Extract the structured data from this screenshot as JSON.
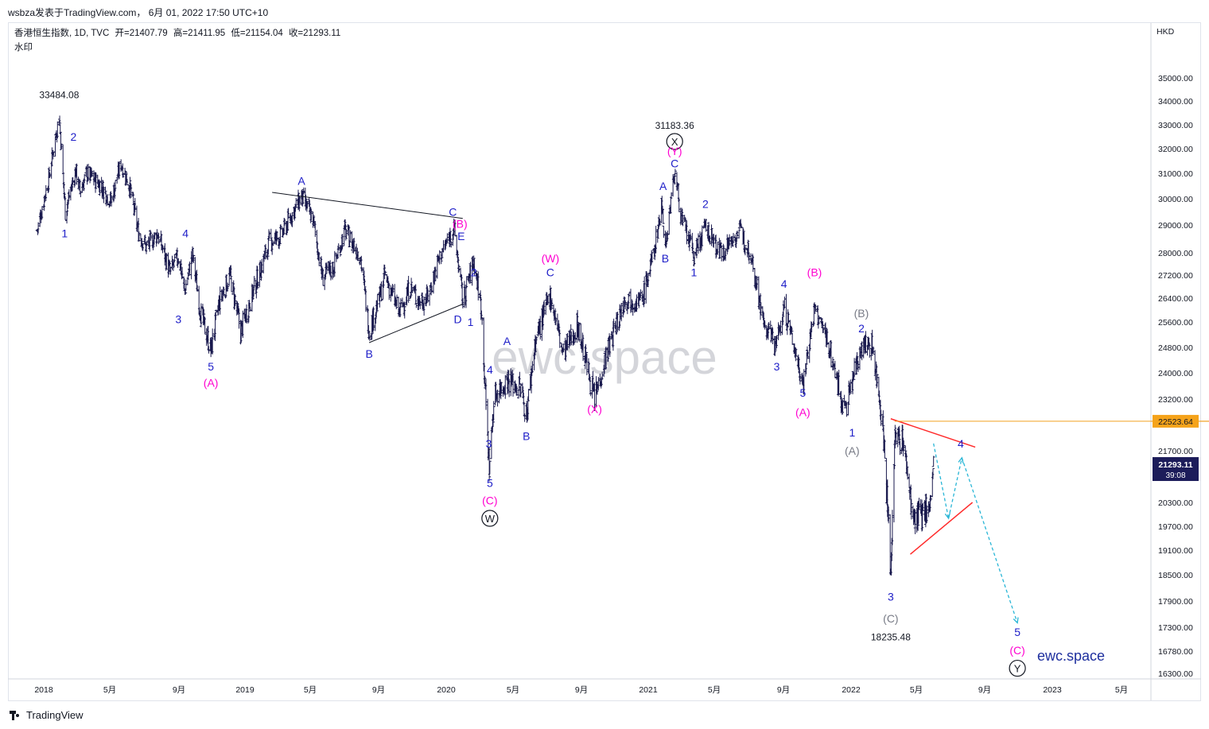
{
  "header": {
    "text": "wsbza发表于TradingView.com， 6月 01, 2022 17:50 UTC+10"
  },
  "legend": {
    "symbol": "香港恒生指数, 1D, TVC",
    "open": "开=21407.79",
    "high": "高=21411.95",
    "low": "低=21154.04",
    "close": "收=21293.11",
    "watermark_label": "水印"
  },
  "currency": "HKD",
  "footer": {
    "brand": "TradingView"
  },
  "watermark": "ewc.space",
  "brand_text": "ewc.space",
  "colors": {
    "candle": "#1a1a4e",
    "blue_label": "#1e1ec8",
    "magenta_label": "#ff00d0",
    "gray_label": "#787b86",
    "red_line": "#ff2a2a",
    "orange_line": "#f0a020",
    "cyan_dash": "#29b6d6",
    "price_tag_dark": "#1c1c5a",
    "price_tag_orange": "#f5a31a"
  },
  "chart_data": {
    "type": "ohlc",
    "title": "香港恒生指数, 1D, TVC",
    "ylabel": "HKD",
    "ylim": [
      16300,
      36000
    ],
    "x_tick_labels": [
      "2018",
      "5月",
      "9月",
      "2019",
      "5月",
      "9月",
      "2020",
      "5月",
      "9月",
      "2021",
      "5月",
      "9月",
      "2022",
      "5月",
      "9月",
      "2023",
      "5月"
    ],
    "y_ticks": [
      35000,
      34000,
      33000,
      32000,
      31000,
      30000,
      29000,
      28000,
      27200,
      26400,
      25600,
      24800,
      24000,
      23200,
      22400,
      21700,
      21000,
      20300,
      19700,
      19100,
      18500,
      17900,
      17300,
      16780,
      16300
    ],
    "y_tick_labels": [
      "35000.00",
      "34000.00",
      "33000.00",
      "32000.00",
      "31000.00",
      "30000.00",
      "29000.00",
      "28000.00",
      "27200.00",
      "26400.00",
      "25600.00",
      "24800.00",
      "24000.00",
      "23200.00",
      "",
      "21700.00",
      "",
      "20300.00",
      "19700.00",
      "19100.00",
      "18500.00",
      "17900.00",
      "17300.00",
      "16780.00",
      "16300.00"
    ],
    "price_path": [
      [
        "2017-12-20",
        28800
      ],
      [
        "2018-01-10",
        30800
      ],
      [
        "2018-01-29",
        33400
      ],
      [
        "2018-02-09",
        29500
      ],
      [
        "2018-02-28",
        31100
      ],
      [
        "2018-03-08",
        30300
      ],
      [
        "2018-03-20",
        31000
      ],
      [
        "2018-04-12",
        30600
      ],
      [
        "2018-05-03",
        29900
      ],
      [
        "2018-05-21",
        31400
      ],
      [
        "2018-06-05",
        30500
      ],
      [
        "2018-06-20",
        28800
      ],
      [
        "2018-07-05",
        28200
      ],
      [
        "2018-07-25",
        28700
      ],
      [
        "2018-08-16",
        27300
      ],
      [
        "2018-09-01",
        27900
      ],
      [
        "2018-09-11",
        26600
      ],
      [
        "2018-09-26",
        27900
      ],
      [
        "2018-10-11",
        25900
      ],
      [
        "2018-10-30",
        24700
      ],
      [
        "2018-11-15",
        26300
      ],
      [
        "2018-12-04",
        27200
      ],
      [
        "2018-12-24",
        25300
      ],
      [
        "2019-01-14",
        26500
      ],
      [
        "2019-02-15",
        28400
      ],
      [
        "2019-03-08",
        28600
      ],
      [
        "2019-04-15",
        30100
      ],
      [
        "2019-05-06",
        29200
      ],
      [
        "2019-05-23",
        27100
      ],
      [
        "2019-06-12",
        27500
      ],
      [
        "2019-07-02",
        28800
      ],
      [
        "2019-07-30",
        27900
      ],
      [
        "2019-08-15",
        25300
      ],
      [
        "2019-09-04",
        26500
      ],
      [
        "2019-09-12",
        27200
      ],
      [
        "2019-10-08",
        25900
      ],
      [
        "2019-10-28",
        26800
      ],
      [
        "2019-11-13",
        26300
      ],
      [
        "2019-11-28",
        26400
      ],
      [
        "2019-12-19",
        27800
      ],
      [
        "2020-01-15",
        28900
      ],
      [
        "2020-01-31",
        26300
      ],
      [
        "2020-02-20",
        27700
      ],
      [
        "2020-03-05",
        26000
      ],
      [
        "2020-03-12",
        23300
      ],
      [
        "2020-03-19",
        21200
      ],
      [
        "2020-03-28",
        23300
      ],
      [
        "2020-04-21",
        23800
      ],
      [
        "2020-05-15",
        23500
      ],
      [
        "2020-05-25",
        22700
      ],
      [
        "2020-06-10",
        25000
      ],
      [
        "2020-07-07",
        26500
      ],
      [
        "2020-07-30",
        24600
      ],
      [
        "2020-08-25",
        25500
      ],
      [
        "2020-09-25",
        23200
      ],
      [
        "2020-10-15",
        24500
      ],
      [
        "2020-11-20",
        26400
      ],
      [
        "2020-12-20",
        26300
      ],
      [
        "2021-01-10",
        27900
      ],
      [
        "2021-01-26",
        29800
      ],
      [
        "2021-02-01",
        28200
      ],
      [
        "2021-02-18",
        31100
      ],
      [
        "2021-03-03",
        29200
      ],
      [
        "2021-03-25",
        27900
      ],
      [
        "2021-04-15",
        28900
      ],
      [
        "2021-05-12",
        28000
      ],
      [
        "2021-06-15",
        28800
      ],
      [
        "2021-07-05",
        28000
      ],
      [
        "2021-07-28",
        25500
      ],
      [
        "2021-08-20",
        24900
      ],
      [
        "2021-09-02",
        26100
      ],
      [
        "2021-10-06",
        23700
      ],
      [
        "2021-10-27",
        26000
      ],
      [
        "2021-11-20",
        25000
      ],
      [
        "2021-12-20",
        22800
      ],
      [
        "2022-01-20",
        24900
      ],
      [
        "2022-02-10",
        24800
      ],
      [
        "2022-03-01",
        22300
      ],
      [
        "2022-03-15",
        18500
      ],
      [
        "2022-03-22",
        22000
      ],
      [
        "2022-04-06",
        22000
      ],
      [
        "2022-04-26",
        19800
      ],
      [
        "2022-05-12",
        20000
      ],
      [
        "2022-05-26",
        20300
      ],
      [
        "2022-06-01",
        21293
      ]
    ],
    "price_tags": [
      {
        "value": 22523.64,
        "label": "22523.64",
        "kind": "level"
      },
      {
        "value": 21293.11,
        "label": "21293.11",
        "sub": "39:08",
        "kind": "last"
      }
    ],
    "annotations": [
      {
        "text": "33484.08",
        "date": "2018-01-29",
        "price": 34300,
        "color": "black"
      },
      {
        "text": "31183.36",
        "date": "2021-02-18",
        "price": 33000,
        "color": "black"
      },
      {
        "text": "18235.48",
        "date": "2022-03-15",
        "price": 17100,
        "color": "black"
      },
      {
        "text": "2",
        "date": "2018-02-24",
        "price": 32500,
        "color": "blue"
      },
      {
        "text": "1",
        "date": "2018-02-08",
        "price": 28700,
        "color": "blue"
      },
      {
        "text": "4",
        "date": "2018-09-13",
        "price": 28700,
        "color": "blue"
      },
      {
        "text": "3",
        "date": "2018-08-31",
        "price": 25700,
        "color": "blue"
      },
      {
        "text": "5",
        "date": "2018-10-30",
        "price": 24200,
        "color": "blue"
      },
      {
        "text": "(A)",
        "date": "2018-10-30",
        "price": 23700,
        "color": "magenta"
      },
      {
        "text": "A",
        "date": "2019-04-15",
        "price": 30700,
        "color": "blue"
      },
      {
        "text": "B",
        "date": "2019-08-15",
        "price": 24600,
        "color": "blue"
      },
      {
        "text": "C",
        "date": "2020-01-13",
        "price": 29500,
        "color": "blue"
      },
      {
        "text": "(B)",
        "date": "2020-01-26",
        "price": 29050,
        "color": "magenta"
      },
      {
        "text": "E",
        "date": "2020-01-28",
        "price": 28600,
        "color": "blue"
      },
      {
        "text": "D",
        "date": "2020-01-22",
        "price": 25700,
        "color": "blue"
      },
      {
        "text": "2",
        "date": "2020-02-20",
        "price": 27300,
        "color": "blue"
      },
      {
        "text": "1",
        "date": "2020-02-14",
        "price": 25600,
        "color": "blue"
      },
      {
        "text": "4",
        "date": "2020-03-20",
        "price": 24100,
        "color": "blue"
      },
      {
        "text": "3",
        "date": "2020-03-18",
        "price": 21900,
        "color": "blue"
      },
      {
        "text": "5",
        "date": "2020-03-20",
        "price": 20800,
        "color": "blue"
      },
      {
        "text": "(C)",
        "date": "2020-03-20",
        "price": 20350,
        "color": "magenta"
      },
      {
        "text": "W",
        "date": "2020-03-20",
        "price": 19900,
        "color": "black",
        "circled": true
      },
      {
        "text": "A",
        "date": "2020-04-20",
        "price": 25000,
        "color": "blue"
      },
      {
        "text": "B",
        "date": "2020-05-25",
        "price": 22100,
        "color": "blue"
      },
      {
        "text": "(W)",
        "date": "2020-07-07",
        "price": 27800,
        "color": "magenta"
      },
      {
        "text": "C",
        "date": "2020-07-07",
        "price": 27300,
        "color": "blue"
      },
      {
        "text": "(X)",
        "date": "2020-09-25",
        "price": 22900,
        "color": "magenta"
      },
      {
        "text": "X",
        "date": "2021-02-18",
        "price": 32300,
        "color": "black",
        "circled": true
      },
      {
        "text": "(Y)",
        "date": "2021-02-18",
        "price": 31900,
        "color": "magenta"
      },
      {
        "text": "C",
        "date": "2021-02-18",
        "price": 31400,
        "color": "blue"
      },
      {
        "text": "A",
        "date": "2021-01-28",
        "price": 30500,
        "color": "blue"
      },
      {
        "text": "B",
        "date": "2021-02-01",
        "price": 27800,
        "color": "blue"
      },
      {
        "text": "2",
        "date": "2021-04-15",
        "price": 29800,
        "color": "blue"
      },
      {
        "text": "1",
        "date": "2021-03-25",
        "price": 27300,
        "color": "blue"
      },
      {
        "text": "4",
        "date": "2021-09-02",
        "price": 26900,
        "color": "blue"
      },
      {
        "text": "3",
        "date": "2021-08-20",
        "price": 24200,
        "color": "blue"
      },
      {
        "text": "(B)",
        "date": "2021-10-27",
        "price": 27300,
        "color": "magenta"
      },
      {
        "text": "5",
        "date": "2021-10-06",
        "price": 23400,
        "color": "blue"
      },
      {
        "text": "(A)",
        "date": "2021-10-06",
        "price": 22800,
        "color": "magenta"
      },
      {
        "text": "(B)",
        "date": "2022-01-20",
        "price": 25900,
        "color": "gray"
      },
      {
        "text": "2",
        "date": "2022-01-20",
        "price": 25400,
        "color": "blue"
      },
      {
        "text": "1",
        "date": "2022-01-03",
        "price": 22200,
        "color": "blue"
      },
      {
        "text": "(A)",
        "date": "2022-01-03",
        "price": 21700,
        "color": "gray"
      },
      {
        "text": "4",
        "date": "2022-07-20",
        "price": 21900,
        "color": "blue"
      },
      {
        "text": "3",
        "date": "2022-03-15",
        "price": 18000,
        "color": "blue"
      },
      {
        "text": "(C)",
        "date": "2022-03-15",
        "price": 17500,
        "color": "gray"
      },
      {
        "text": "5",
        "date": "2022-10-30",
        "price": 17200,
        "color": "blue"
      },
      {
        "text": "(C)",
        "date": "2022-10-30",
        "price": 16800,
        "color": "magenta"
      },
      {
        "text": "Y",
        "date": "2022-10-30",
        "price": 16410,
        "color": "black",
        "circled": true
      }
    ],
    "trendlines": [
      {
        "from": [
          "2019-02-20",
          30250
        ],
        "to": [
          "2020-01-31",
          29250
        ],
        "color": "black"
      },
      {
        "from": [
          "2019-08-15",
          24950
        ],
        "to": [
          "2020-01-31",
          26200
        ],
        "color": "black"
      },
      {
        "from": [
          "2022-03-15",
          22600
        ],
        "to": [
          "2022-08-15",
          21800
        ],
        "color": "red"
      },
      {
        "from": [
          "2022-04-20",
          19000
        ],
        "to": [
          "2022-08-10",
          20300
        ],
        "color": "red"
      },
      {
        "from": [
          "2022-03-22",
          22523.64
        ],
        "to": [
          "2023-09-30",
          22523.64
        ],
        "color": "orange"
      }
    ],
    "projection_path": [
      [
        "2022-06-01",
        21900
      ],
      [
        "2022-06-28",
        19900
      ],
      [
        "2022-07-22",
        21500
      ],
      [
        "2022-10-30",
        17400
      ]
    ]
  }
}
